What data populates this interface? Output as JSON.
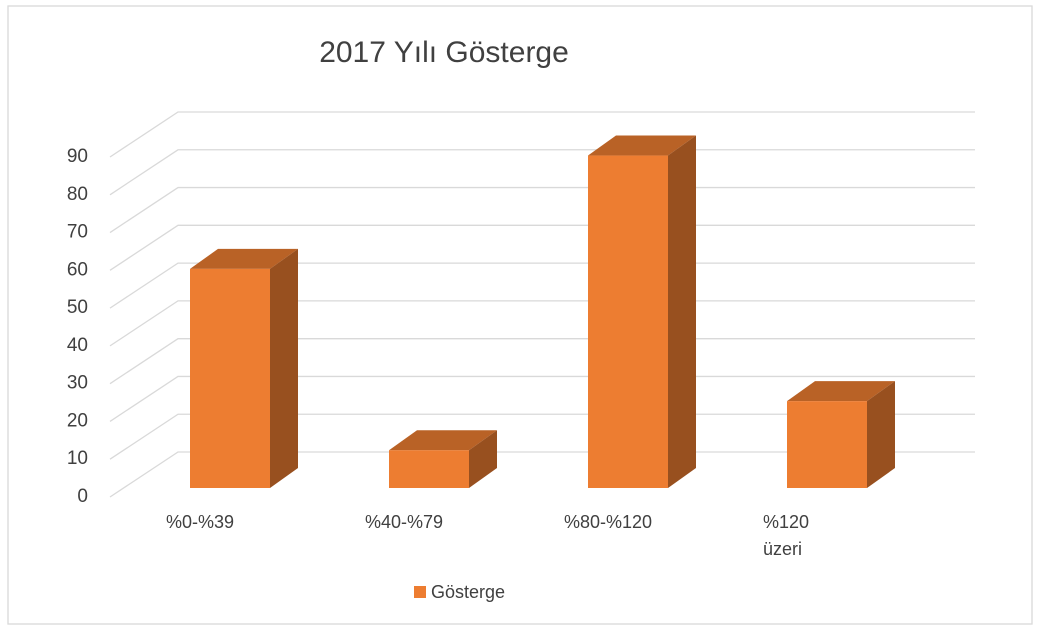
{
  "chart_data": {
    "type": "bar3d",
    "title": "2017 Yılı Gösterge",
    "categories": [
      "%0-%39",
      "%40-%79",
      "%80-%120",
      "%120 üzeri"
    ],
    "series": [
      {
        "name": "Gösterge",
        "color": "#ED7D31",
        "values": [
          58,
          10,
          88,
          23
        ]
      }
    ],
    "ylim": [
      0,
      90
    ],
    "yticks": [
      0,
      10,
      20,
      30,
      40,
      50,
      60,
      70,
      80,
      90
    ],
    "grid": true,
    "legend": "bottom"
  }
}
